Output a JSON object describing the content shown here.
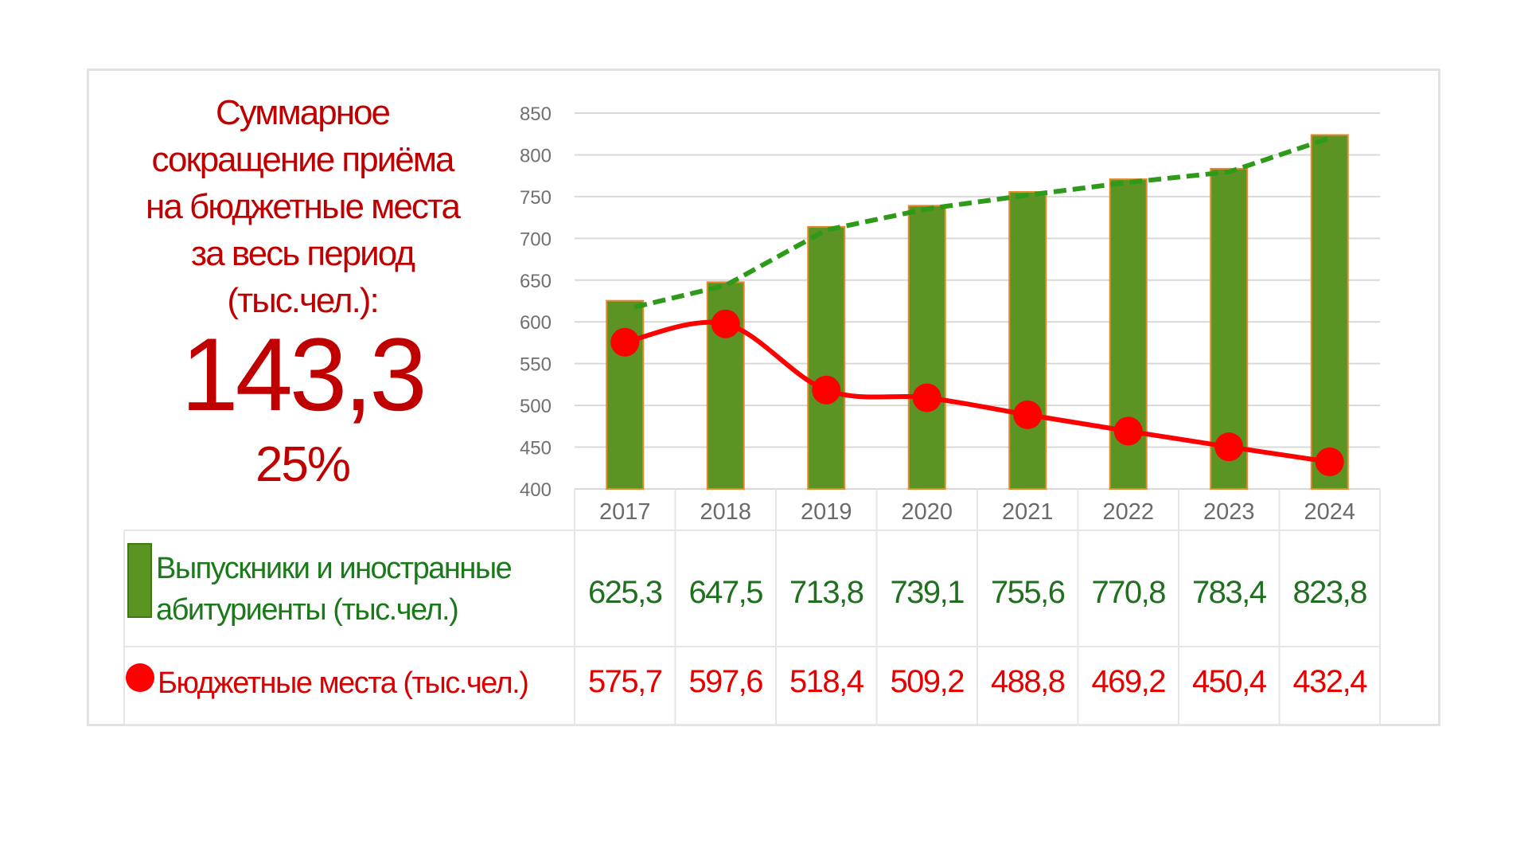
{
  "headline": {
    "lines": [
      "Суммарное",
      "сокращение приёма",
      "на бюджетные места",
      "за весь период",
      "(тыс.чел.):"
    ],
    "value": "143,3",
    "percent": "25%"
  },
  "chart_data": {
    "type": "bar",
    "categories": [
      "2017",
      "2018",
      "2019",
      "2020",
      "2021",
      "2022",
      "2023",
      "2024"
    ],
    "ylim": [
      400,
      850
    ],
    "yticks": [
      "850",
      "800",
      "750",
      "700",
      "650",
      "600",
      "550",
      "500",
      "450",
      "400"
    ],
    "grid": true,
    "series": [
      {
        "name": "Выпускники и иностранные абитуриенты (тыс.чел.)",
        "type": "bar",
        "color": "#5b9423",
        "values": [
          625.3,
          647.5,
          713.8,
          739.1,
          755.6,
          770.8,
          783.4,
          823.8
        ],
        "labels": [
          "625,3",
          "647,5",
          "713,8",
          "739,1",
          "755,6",
          "770,8",
          "783,4",
          "823,8"
        ],
        "trendline_color": "#2e9a1a"
      },
      {
        "name": "Бюджетные места (тыс.чел.)",
        "type": "line",
        "color": "#ff0000",
        "values": [
          575.7,
          597.6,
          518.4,
          509.2,
          488.8,
          469.2,
          450.4,
          432.4
        ],
        "labels": [
          "575,7",
          "597,6",
          "518,4",
          "509,2",
          "488,8",
          "469,2",
          "450,4",
          "432,4"
        ]
      }
    ]
  },
  "legend": {
    "graduates": "Выпускники и иностранные абитуриенты (тыс.чел.)",
    "budget": "Бюджетные места (тыс.чел.)"
  },
  "colors": {
    "title_red": "#c00000",
    "bar_green": "#5b9423",
    "bar_edge": "#e58a2c",
    "line_red": "#ff0000",
    "value_green": "#1f6f1f",
    "value_red": "#e60000",
    "legend_green_text": "#1a7a1a",
    "legend_red_text": "#d80000"
  }
}
